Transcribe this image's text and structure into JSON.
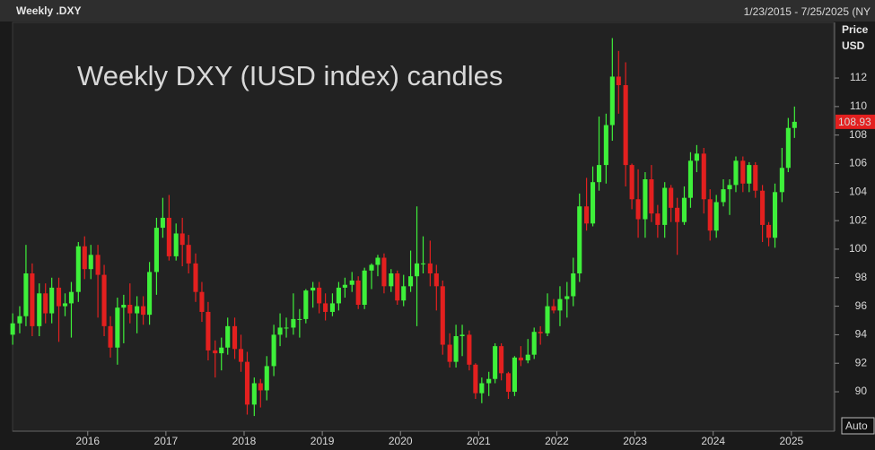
{
  "chart_data": {
    "type": "candlestick",
    "title": "Weekly .DXY",
    "date_range": "1/23/2015 - 7/25/2025 (NY",
    "annotation": "Weekly DXY (IUSD index) candles",
    "y_axis_label": "Price",
    "y_axis_unit": "USD",
    "scale_mode": "Auto",
    "x": [
      2015.04,
      2015.13,
      2015.21,
      2015.29,
      2015.38,
      2015.46,
      2015.54,
      2015.63,
      2015.71,
      2015.79,
      2015.88,
      2015.96,
      2016.04,
      2016.13,
      2016.21,
      2016.29,
      2016.38,
      2016.46,
      2016.54,
      2016.63,
      2016.71,
      2016.79,
      2016.88,
      2016.96,
      2017.04,
      2017.13,
      2017.21,
      2017.29,
      2017.38,
      2017.46,
      2017.54,
      2017.63,
      2017.71,
      2017.79,
      2017.88,
      2017.96,
      2018.04,
      2018.13,
      2018.21,
      2018.29,
      2018.38,
      2018.46,
      2018.54,
      2018.63,
      2018.71,
      2018.79,
      2018.88,
      2018.96,
      2019.04,
      2019.13,
      2019.21,
      2019.29,
      2019.38,
      2019.46,
      2019.54,
      2019.63,
      2019.71,
      2019.79,
      2019.88,
      2019.96,
      2020.04,
      2020.13,
      2020.21,
      2020.29,
      2020.38,
      2020.46,
      2020.54,
      2020.63,
      2020.71,
      2020.79,
      2020.88,
      2020.96,
      2021.04,
      2021.13,
      2021.21,
      2021.29,
      2021.38,
      2021.46,
      2021.54,
      2021.63,
      2021.71,
      2021.79,
      2021.88,
      2021.96,
      2022.04,
      2022.13,
      2022.21,
      2022.29,
      2022.38,
      2022.46,
      2022.54,
      2022.63,
      2022.71,
      2022.79,
      2022.88,
      2022.96,
      2023.04,
      2023.13,
      2023.21,
      2023.29,
      2023.38,
      2023.46,
      2023.54,
      2023.63,
      2023.71,
      2023.79,
      2023.88,
      2023.96,
      2024.04,
      2024.13,
      2024.21,
      2024.29,
      2024.38,
      2024.46,
      2024.54,
      2024.63,
      2024.71,
      2024.79,
      2024.88,
      2024.96,
      2025.04
    ],
    "open": [
      94.0,
      94.8,
      95.3,
      98.3,
      94.6,
      96.9,
      95.5,
      97.3,
      96.0,
      96.2,
      97.0,
      100.2,
      98.6,
      99.6,
      98.2,
      94.6,
      93.1,
      95.9,
      96.1,
      95.5,
      96.0,
      95.4,
      98.4,
      101.5,
      102.2,
      99.5,
      101.1,
      100.3,
      99.0,
      97.0,
      95.6,
      92.9,
      92.7,
      93.1,
      94.6,
      93.0,
      92.1,
      89.1,
      90.6,
      90.1,
      91.8,
      94.0,
      94.5,
      94.5,
      95.1,
      95.1,
      97.1,
      97.3,
      96.2,
      95.6,
      96.2,
      97.3,
      97.5,
      97.8,
      96.1,
      98.5,
      98.9,
      99.4,
      97.4,
      98.3,
      96.4,
      97.4,
      98.1,
      99.0,
      99.0,
      98.3,
      97.4,
      93.3,
      92.1,
      93.9,
      94.0,
      91.9,
      89.9,
      90.6,
      90.9,
      93.2,
      91.3,
      90.0,
      92.4,
      92.2,
      92.6,
      94.2,
      94.1,
      96.0,
      95.7,
      96.5,
      96.7,
      98.3,
      103.0,
      101.8,
      104.7,
      105.9,
      108.7,
      112.1,
      111.5,
      105.9,
      103.5,
      102.1,
      104.9,
      102.5,
      101.7,
      104.3,
      102.9,
      101.9,
      103.6,
      106.2,
      106.7,
      103.5,
      101.3,
      103.3,
      104.2,
      104.5,
      106.2,
      104.6,
      105.9,
      104.1,
      101.7,
      100.8,
      104.0,
      105.7,
      108.5
    ],
    "high": [
      95.5,
      96.0,
      100.3,
      99.0,
      97.6,
      97.6,
      98.0,
      98.0,
      96.9,
      97.7,
      100.5,
      100.9,
      100.3,
      100.3,
      98.9,
      95.3,
      96.6,
      96.8,
      97.6,
      96.7,
      96.7,
      99.1,
      102.2,
      103.6,
      103.8,
      101.8,
      102.2,
      101.0,
      99.7,
      97.7,
      96.3,
      93.6,
      93.8,
      95.2,
      95.2,
      94.0,
      92.8,
      91.0,
      90.9,
      92.5,
      94.7,
      95.5,
      95.2,
      96.9,
      95.8,
      97.2,
      97.7,
      97.7,
      96.9,
      96.9,
      97.7,
      98.0,
      98.4,
      98.1,
      98.7,
      99.0,
      99.6,
      99.7,
      98.6,
      98.5,
      98.2,
      99.9,
      103.0,
      100.9,
      100.6,
      98.9,
      97.8,
      94.1,
      94.7,
      94.7,
      94.3,
      92.0,
      91.0,
      91.4,
      93.4,
      93.4,
      91.4,
      92.5,
      93.2,
      93.7,
      94.5,
      94.6,
      96.9,
      96.5,
      97.4,
      97.7,
      99.4,
      103.9,
      105.0,
      105.8,
      109.3,
      109.5,
      114.8,
      113.9,
      113.1,
      106.0,
      105.6,
      105.4,
      105.9,
      103.1,
      104.7,
      104.5,
      103.6,
      104.4,
      106.8,
      107.3,
      107.1,
      104.2,
      103.8,
      104.9,
      104.9,
      106.5,
      106.5,
      106.1,
      106.1,
      104.5,
      101.9,
      104.6,
      107.1,
      109.2,
      110.0
    ],
    "low": [
      93.3,
      94.1,
      94.6,
      93.9,
      93.9,
      94.8,
      94.8,
      93.5,
      95.3,
      93.8,
      96.3,
      97.9,
      97.9,
      95.2,
      93.9,
      92.4,
      91.9,
      93.4,
      94.8,
      94.1,
      94.7,
      94.7,
      96.8,
      100.8,
      99.2,
      99.2,
      98.8,
      98.3,
      96.3,
      94.9,
      92.2,
      91.0,
      91.5,
      92.6,
      92.3,
      91.4,
      88.4,
      88.3,
      88.9,
      89.4,
      91.1,
      93.2,
      93.8,
      94.0,
      93.8,
      94.8,
      95.9,
      95.5,
      95.0,
      95.3,
      95.7,
      96.6,
      97.0,
      95.8,
      95.8,
      97.2,
      98.1,
      96.9,
      97.0,
      96.1,
      96.0,
      97.0,
      94.6,
      98.3,
      97.4,
      95.7,
      92.6,
      91.7,
      91.7,
      92.5,
      91.5,
      89.5,
      89.2,
      89.7,
      90.6,
      90.8,
      89.5,
      89.7,
      91.8,
      92.0,
      92.3,
      93.3,
      93.9,
      95.5,
      94.6,
      95.2,
      96.0,
      97.7,
      101.3,
      101.6,
      104.1,
      104.6,
      107.6,
      109.5,
      104.4,
      102.8,
      100.8,
      100.8,
      101.9,
      100.8,
      100.8,
      101.9,
      99.6,
      101.7,
      102.9,
      105.4,
      102.5,
      100.6,
      100.8,
      103.0,
      102.4,
      104.0,
      104.0,
      104.0,
      103.6,
      100.5,
      100.2,
      100.1,
      103.3,
      105.4,
      107.8
    ],
    "close": [
      94.8,
      95.3,
      98.3,
      94.6,
      96.9,
      95.5,
      97.3,
      96.0,
      96.2,
      97.0,
      100.2,
      98.6,
      99.6,
      98.2,
      94.6,
      93.1,
      95.9,
      96.1,
      95.5,
      96.0,
      95.4,
      98.4,
      101.5,
      102.2,
      99.5,
      101.1,
      100.3,
      99.0,
      97.0,
      95.6,
      92.9,
      92.7,
      93.1,
      94.6,
      93.0,
      92.1,
      89.1,
      90.6,
      90.1,
      91.8,
      94.0,
      94.5,
      94.5,
      95.1,
      95.1,
      97.1,
      97.3,
      96.2,
      95.6,
      96.2,
      97.3,
      97.5,
      97.8,
      96.1,
      98.5,
      98.9,
      99.4,
      97.4,
      98.3,
      96.4,
      97.4,
      98.1,
      99.0,
      99.0,
      98.3,
      97.4,
      93.3,
      92.1,
      93.9,
      94.0,
      91.9,
      89.9,
      90.6,
      90.9,
      93.2,
      91.3,
      90.0,
      92.4,
      92.2,
      92.6,
      94.2,
      94.1,
      96.0,
      95.7,
      96.5,
      96.7,
      98.3,
      103.0,
      101.8,
      104.7,
      105.9,
      108.7,
      112.1,
      111.5,
      105.9,
      103.5,
      102.1,
      104.9,
      102.5,
      101.7,
      104.3,
      102.9,
      101.9,
      103.6,
      106.2,
      106.7,
      103.5,
      101.3,
      103.3,
      104.2,
      104.5,
      106.2,
      104.6,
      105.9,
      104.1,
      101.7,
      100.8,
      104.0,
      105.7,
      108.5,
      108.93
    ],
    "up_color": "#3ef03a",
    "down_color": "#e3201f",
    "annotation_color": "#d8161d",
    "xlim": [
      2015.05,
      2025.53
    ],
    "ylim": [
      87.3,
      115.9
    ],
    "xticks": [
      2016,
      2017,
      2018,
      2019,
      2020,
      2021,
      2022,
      2023,
      2024,
      2025
    ],
    "yticks": [
      90,
      92,
      94,
      96,
      98,
      100,
      102,
      104,
      106,
      108,
      110,
      112
    ]
  }
}
